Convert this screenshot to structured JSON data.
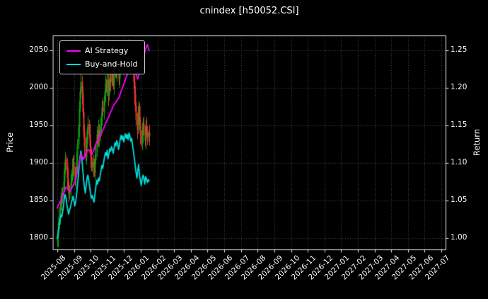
{
  "chart_data": {
    "type": "candlestick+line",
    "title": "cnindex [h50052.CSI]",
    "ylabel_left": "Price",
    "ylabel_right": "Return",
    "legend_position": "upper-left",
    "grid": "dotted",
    "x_tick_labels": [
      "2025-08",
      "2025-09",
      "2025-10",
      "2025-11",
      "2025-12",
      "2026-01",
      "2026-02",
      "2026-03",
      "2026-04",
      "2026-05",
      "2026-06",
      "2026-07",
      "2026-08",
      "2026-09",
      "2026-10",
      "2026-11",
      "2026-12",
      "2027-01",
      "2027-02",
      "2027-03",
      "2027-04",
      "2027-05",
      "2027-06",
      "2027-07"
    ],
    "left_ticks": [
      "1800",
      "1850",
      "1900",
      "1950",
      "2000",
      "2050"
    ],
    "right_ticks": [
      "1.00",
      "1.05",
      "1.10",
      "1.15",
      "1.20",
      "1.25"
    ],
    "price_range": [
      1785,
      2070
    ],
    "return_range": [
      0.985,
      1.27
    ],
    "data_span_months": 5.5,
    "colors": {
      "background": "#000000",
      "text": "#ffffff",
      "grid": "#555555",
      "spine": "#e8e8e8",
      "up": "#0ca30c",
      "down": "#f23434"
    },
    "candles": {
      "open": [
        1796,
        1800,
        1812,
        1828,
        1842,
        1856,
        1850,
        1862,
        1875,
        1893,
        1905,
        1898,
        1880,
        1868,
        1858,
        1866,
        1874,
        1884,
        1892,
        1901,
        1890,
        1878,
        1886,
        1902,
        1925,
        1948,
        1972,
        1995,
        2008,
        1992,
        1968,
        1942,
        1922,
        1908,
        1926,
        1944,
        1952,
        1938,
        1922,
        1908,
        1896,
        1902,
        1893,
        1887,
        1904,
        1921,
        1938,
        1930,
        1944,
        1936,
        1950,
        1962,
        1974,
        1968,
        1982,
        1994,
        2006,
        1998,
        2010,
        1990,
        2002,
        2014,
        2008,
        2020,
        2012,
        2004,
        2018,
        2028,
        2022,
        2034,
        2026,
        2012,
        2024,
        2038,
        2046,
        2036,
        2044,
        2030,
        2042,
        2050,
        2040,
        2048,
        2036,
        2052,
        2044,
        2032,
        2040,
        2024,
        2008,
        1992,
        1976,
        1958,
        1944,
        1962,
        1976,
        1950,
        1938,
        1926,
        1940,
        1952,
        1944,
        1930,
        1948,
        1942,
        1934,
        1940
      ],
      "high": [
        1805,
        1821,
        1841,
        1849,
        1860,
        1867,
        1868,
        1889,
        1901,
        1915,
        1910,
        1907,
        1893,
        1875,
        1870,
        1885,
        1890,
        1906,
        1909,
        1911,
        1895,
        1895,
        1915,
        1932,
        1952,
        1983,
        2001,
        2022,
        2016,
        2002,
        1973,
        1951,
        1935,
        1933,
        1948,
        1963,
        1958,
        1952,
        1930,
        1918,
        1907,
        1911,
        1906,
        1911,
        1925,
        1949,
        1944,
        1958,
        1952,
        1960,
        1967,
        1983,
        1987,
        1989,
        1998,
        2017,
        2012,
        2024,
        2018,
        2012,
        2019,
        2023,
        2033,
        2027,
        2016,
        2029,
        2034,
        2042,
        2042,
        2044,
        2031,
        2033,
        2051,
        2053,
        2050,
        2055,
        2050,
        2056,
        2058,
        2060,
        2053,
        2057,
        2065,
        2059,
        2048,
        2051,
        2046,
        2038,
        2016,
        2002,
        1981,
        1967,
        1975,
        1983,
        1980,
        1961,
        1944,
        1954,
        1960,
        1962,
        1949,
        1957,
        1961,
        1949,
        1944,
        1951
      ],
      "low": [
        1788,
        1788,
        1807,
        1818,
        1836,
        1837,
        1846,
        1853,
        1861,
        1886,
        1890,
        1868,
        1863,
        1848,
        1852,
        1853,
        1870,
        1875,
        1878,
        1883,
        1870,
        1866,
        1881,
        1892,
        1919,
        1935,
        1968,
        1986,
        1978,
        1961,
        1934,
        1910,
        1903,
        1898,
        1920,
        1931,
        1934,
        1913,
        1894,
        1889,
        1888,
        1881,
        1882,
        1877,
        1898,
        1908,
        1926,
        1921,
        1922,
        1929,
        1942,
        1950,
        1963,
        1958,
        1976,
        1981,
        1994,
        1989,
        1976,
        1983,
        1994,
        1996,
        2003,
        2002,
        1998,
        1991,
        2014,
        2013,
        2008,
        2019,
        2004,
        2000,
        2019,
        2028,
        2030,
        2023,
        2026,
        2021,
        2028,
        2033,
        2032,
        2024,
        2031,
        2034,
        2026,
        2019,
        2020,
        1999,
        1978,
        1969,
        1950,
        1932,
        1939,
        1952,
        1944,
        1925,
        1922,
        1917,
        1926,
        1937,
        1922,
        1918,
        1937,
        1924,
        1928,
        1923
      ],
      "close": [
        1800,
        1812,
        1828,
        1842,
        1856,
        1850,
        1862,
        1875,
        1893,
        1905,
        1898,
        1880,
        1868,
        1858,
        1866,
        1874,
        1884,
        1892,
        1901,
        1890,
        1878,
        1886,
        1902,
        1925,
        1948,
        1972,
        1995,
        2008,
        1992,
        1968,
        1942,
        1922,
        1908,
        1926,
        1944,
        1952,
        1938,
        1922,
        1908,
        1896,
        1902,
        1893,
        1887,
        1904,
        1921,
        1938,
        1930,
        1944,
        1936,
        1950,
        1962,
        1974,
        1968,
        1982,
        1994,
        2006,
        1998,
        2010,
        1990,
        2002,
        2014,
        2008,
        2020,
        2012,
        2004,
        2018,
        2028,
        2022,
        2034,
        2026,
        2012,
        2024,
        2038,
        2046,
        2036,
        2044,
        2030,
        2042,
        2050,
        2040,
        2048,
        2036,
        2052,
        2044,
        2032,
        2040,
        2024,
        2008,
        1992,
        1976,
        1958,
        1944,
        1962,
        1976,
        1950,
        1938,
        1926,
        1940,
        1952,
        1944,
        1930,
        1948,
        1942,
        1934,
        1940,
        1936
      ]
    },
    "series": [
      {
        "name": "AI Strategy",
        "axis": "return",
        "color": "#ff00ff",
        "values": [
          1.04,
          1.043,
          1.045,
          1.048,
          1.05,
          1.052,
          1.056,
          1.059,
          1.062,
          1.066,
          1.068,
          1.067,
          1.065,
          1.064,
          1.063,
          1.062,
          1.065,
          1.068,
          1.07,
          1.073,
          1.075,
          1.08,
          1.084,
          1.089,
          1.094,
          1.098,
          1.105,
          1.112,
          1.11,
          1.107,
          1.105,
          1.108,
          1.11,
          1.113,
          1.116,
          1.118,
          1.117,
          1.116,
          1.115,
          1.113,
          1.112,
          1.115,
          1.118,
          1.122,
          1.125,
          1.128,
          1.13,
          1.132,
          1.134,
          1.136,
          1.138,
          1.141,
          1.144,
          1.146,
          1.149,
          1.152,
          1.155,
          1.157,
          1.16,
          1.162,
          1.165,
          1.168,
          1.17,
          1.173,
          1.176,
          1.178,
          1.18,
          1.181,
          1.183,
          1.185,
          1.186,
          1.189,
          1.192,
          1.196,
          1.199,
          1.202,
          1.205,
          1.208,
          1.212,
          1.215,
          1.218,
          1.221,
          1.224,
          1.226,
          1.229,
          1.232,
          1.23,
          1.228,
          1.226,
          1.222,
          1.218,
          1.215,
          1.212,
          1.217,
          1.222,
          1.228,
          1.232,
          1.236,
          1.24,
          1.244,
          1.248,
          1.252,
          1.255,
          1.258,
          1.254,
          1.25
        ]
      },
      {
        "name": "Buy-and-Hold",
        "axis": "return",
        "color": "#00dddd",
        "values": [
          1.0,
          1.007,
          1.016,
          1.023,
          1.031,
          1.028,
          1.034,
          1.042,
          1.052,
          1.058,
          1.054,
          1.044,
          1.038,
          1.032,
          1.037,
          1.041,
          1.047,
          1.051,
          1.056,
          1.05,
          1.043,
          1.048,
          1.057,
          1.069,
          1.082,
          1.096,
          1.108,
          1.116,
          1.107,
          1.093,
          1.079,
          1.068,
          1.06,
          1.07,
          1.08,
          1.084,
          1.077,
          1.068,
          1.06,
          1.053,
          1.057,
          1.052,
          1.048,
          1.058,
          1.067,
          1.077,
          1.072,
          1.08,
          1.076,
          1.083,
          1.09,
          1.097,
          1.093,
          1.101,
          1.108,
          1.114,
          1.11,
          1.117,
          1.106,
          1.112,
          1.119,
          1.116,
          1.122,
          1.118,
          1.113,
          1.121,
          1.127,
          1.123,
          1.13,
          1.126,
          1.118,
          1.124,
          1.132,
          1.137,
          1.131,
          1.136,
          1.128,
          1.134,
          1.139,
          1.133,
          1.138,
          1.131,
          1.14,
          1.136,
          1.129,
          1.133,
          1.124,
          1.116,
          1.107,
          1.098,
          1.088,
          1.08,
          1.09,
          1.098,
          1.083,
          1.077,
          1.07,
          1.078,
          1.084,
          1.08,
          1.072,
          1.082,
          1.079,
          1.074,
          1.078,
          1.076
        ]
      }
    ]
  }
}
